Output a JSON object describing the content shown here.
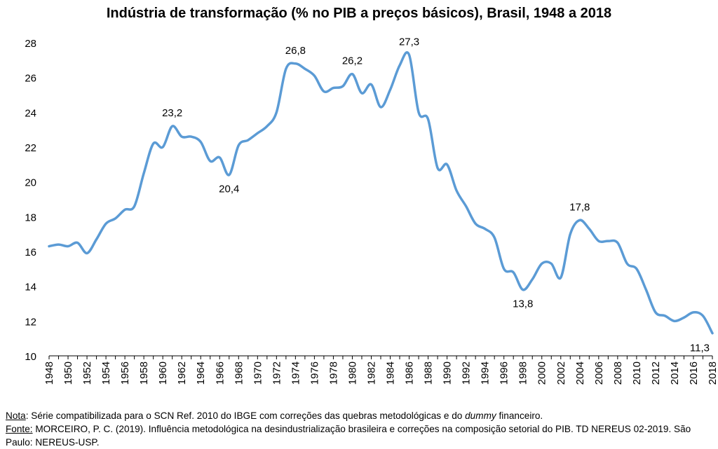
{
  "chart_data": {
    "type": "line",
    "title": "Indústria de transformação (% no PIB a preços básicos), Brasil, 1948 a 2018",
    "xlabel": "",
    "ylabel": "",
    "ylim": [
      10,
      28
    ],
    "yticks": [
      "10",
      "12",
      "14",
      "16",
      "18",
      "20",
      "22",
      "24",
      "26",
      "28"
    ],
    "xticks": [
      "1948",
      "1950",
      "1952",
      "1954",
      "1956",
      "1958",
      "1960",
      "1962",
      "1964",
      "1966",
      "1968",
      "1970",
      "1972",
      "1974",
      "1976",
      "1978",
      "1980",
      "1982",
      "1984",
      "1986",
      "1988",
      "1990",
      "1992",
      "1994",
      "1996",
      "1998",
      "2000",
      "2002",
      "2004",
      "2006",
      "2008",
      "2010",
      "2012",
      "2014",
      "2016",
      "2018"
    ],
    "grid": false,
    "legend": "none",
    "line_color": "#5B9BD5",
    "series": [
      {
        "x": [
          1948,
          1949,
          1950,
          1951,
          1952,
          1953,
          1954,
          1955,
          1956,
          1957,
          1958,
          1959,
          1960,
          1961,
          1962,
          1963,
          1964,
          1965,
          1966,
          1967,
          1968,
          1969,
          1970,
          1971,
          1972,
          1973,
          1974,
          1975,
          1976,
          1977,
          1978,
          1979,
          1980,
          1981,
          1982,
          1983,
          1984,
          1985,
          1986,
          1987,
          1988,
          1989,
          1990,
          1991,
          1992,
          1993,
          1994,
          1995,
          1996,
          1997,
          1998,
          1999,
          2000,
          2001,
          2002,
          2003,
          2004,
          2005,
          2006,
          2007,
          2008,
          2009,
          2010,
          2011,
          2012,
          2013,
          2014,
          2015,
          2016,
          2017,
          2018
        ],
        "values": [
          16.3,
          16.4,
          16.3,
          16.5,
          15.9,
          16.7,
          17.6,
          17.9,
          18.4,
          18.6,
          20.5,
          22.2,
          22.0,
          23.2,
          22.6,
          22.6,
          22.3,
          21.2,
          21.4,
          20.4,
          22.1,
          22.4,
          22.8,
          23.2,
          24.0,
          26.5,
          26.8,
          26.5,
          26.1,
          25.2,
          25.4,
          25.5,
          26.2,
          25.1,
          25.6,
          24.3,
          25.3,
          26.7,
          27.3,
          24.0,
          23.6,
          20.8,
          21.0,
          19.5,
          18.6,
          17.6,
          17.3,
          16.8,
          15.0,
          14.8,
          13.8,
          14.4,
          15.3,
          15.3,
          14.5,
          17.0,
          17.8,
          17.3,
          16.6,
          16.6,
          16.5,
          15.3,
          15.0,
          13.8,
          12.5,
          12.3,
          12.0,
          12.2,
          12.5,
          12.3,
          11.3
        ]
      }
    ],
    "annotations": [
      {
        "x": 1961,
        "y": 23.2,
        "text": "23,2",
        "pos": "above"
      },
      {
        "x": 1967,
        "y": 20.4,
        "text": "20,4",
        "pos": "below"
      },
      {
        "x": 1974,
        "y": 26.8,
        "text": "26,8",
        "pos": "above"
      },
      {
        "x": 1980,
        "y": 26.2,
        "text": "26,2",
        "pos": "above"
      },
      {
        "x": 1986,
        "y": 27.3,
        "text": "27,3",
        "pos": "above"
      },
      {
        "x": 1998,
        "y": 13.8,
        "text": "13,8",
        "pos": "below"
      },
      {
        "x": 2004,
        "y": 17.8,
        "text": "17,8",
        "pos": "above"
      },
      {
        "x": 2018,
        "y": 11.3,
        "text": "11,3",
        "pos": "below-left"
      }
    ]
  },
  "notes": {
    "nota_label": "Nota",
    "nota_text_1": ": Série compatibilizada para o SCN Ref. 2010 do IBGE com correções das quebras metodológicas e do ",
    "nota_italic": "dummy",
    "nota_text_2": " financeiro.",
    "fonte_label": "Fonte:",
    "fonte_text": " MORCEIRO, P. C. (2019). Influência metodológica na desindustrialização brasileira e correções na composição setorial do PIB. TD NEREUS 02-2019. São Paulo: NEREUS-USP."
  }
}
